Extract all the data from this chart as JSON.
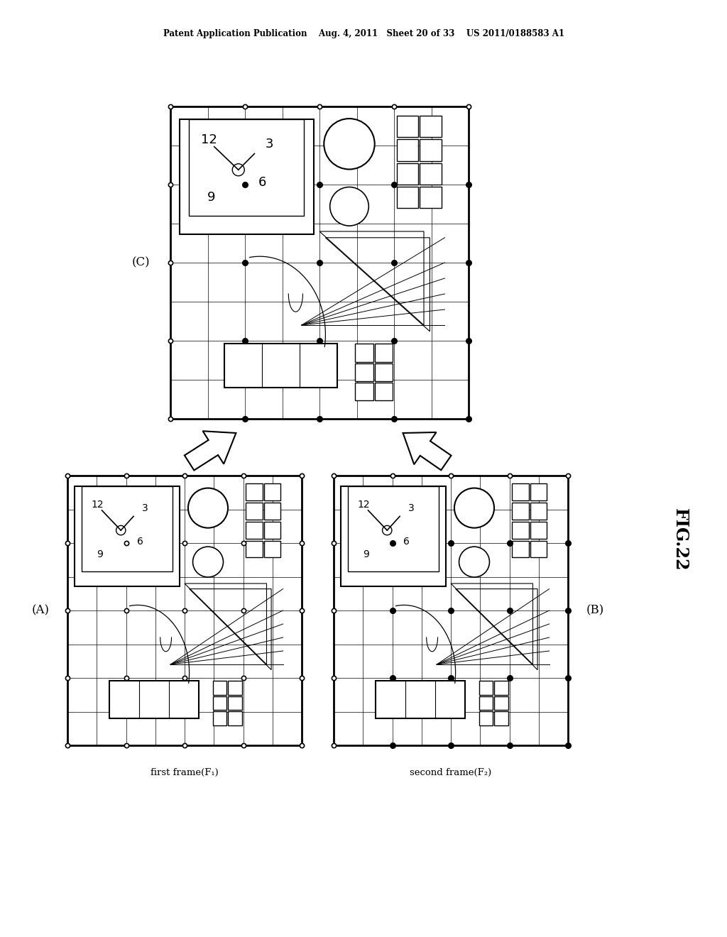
{
  "title_header": "Patent Application Publication    Aug. 4, 2011   Sheet 20 of 33    US 2011/0188583 A1",
  "fig_label": "FIG.22",
  "bg_color": "#ffffff",
  "label_A": "(A)",
  "label_B": "(B)",
  "label_C": "(C)",
  "caption_A": "first frame(F₁)",
  "caption_B": "second frame(F₂)"
}
